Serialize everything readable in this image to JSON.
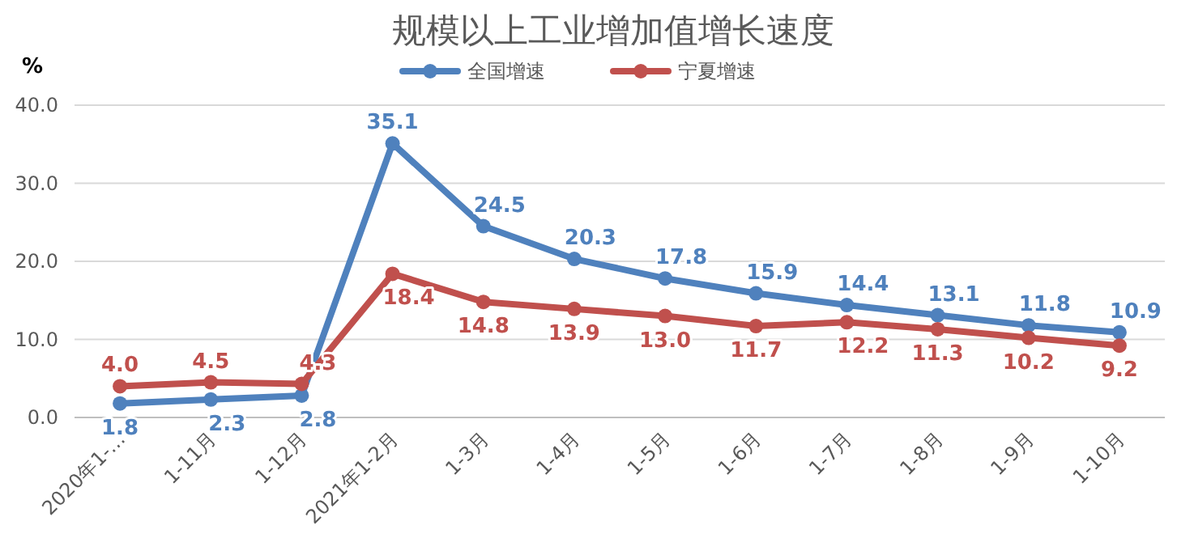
{
  "chart_data": {
    "type": "line",
    "title": "规模以上工业增加值增长速度",
    "ylabel": "%",
    "categories": [
      "2020年1-…",
      "1-11月",
      "1-12月",
      "2021年1-2月",
      "1-3月",
      "1-4月",
      "1-5月",
      "1-6月",
      "1-7月",
      "1-8月",
      "1-9月",
      "1-10月"
    ],
    "series": [
      {
        "name": "全国增速",
        "color": "#4f81bd",
        "values": [
          1.8,
          2.3,
          2.8,
          35.1,
          24.5,
          20.3,
          17.8,
          15.9,
          14.4,
          13.1,
          11.8,
          10.9
        ],
        "value_labels": [
          "1.8",
          "2.3",
          "2.8",
          "35.1",
          "24.5",
          "20.3",
          "17.8",
          "15.9",
          "14.4",
          "13.1",
          "11.8",
          "10.9"
        ]
      },
      {
        "name": "宁夏增速",
        "color": "#c0504d",
        "values": [
          4.0,
          4.5,
          4.3,
          18.4,
          14.8,
          13.9,
          13.0,
          11.7,
          12.2,
          11.3,
          10.2,
          9.2
        ],
        "value_labels": [
          "4.0",
          "4.5",
          "4.3",
          "18.4",
          "14.8",
          "13.9",
          "13.0",
          "11.7",
          "12.2",
          "11.3",
          "10.2",
          "9.2"
        ]
      }
    ],
    "ylim": [
      0,
      40
    ],
    "yticks": [
      {
        "value": 0,
        "label": "0.0"
      },
      {
        "value": 10,
        "label": "10.0"
      },
      {
        "value": 20,
        "label": "20.0"
      },
      {
        "value": 30,
        "label": "30.0"
      },
      {
        "value": 40,
        "label": "40.0"
      }
    ],
    "grid": "y",
    "legend": "top",
    "marker": "circle",
    "line_style": "solid"
  }
}
